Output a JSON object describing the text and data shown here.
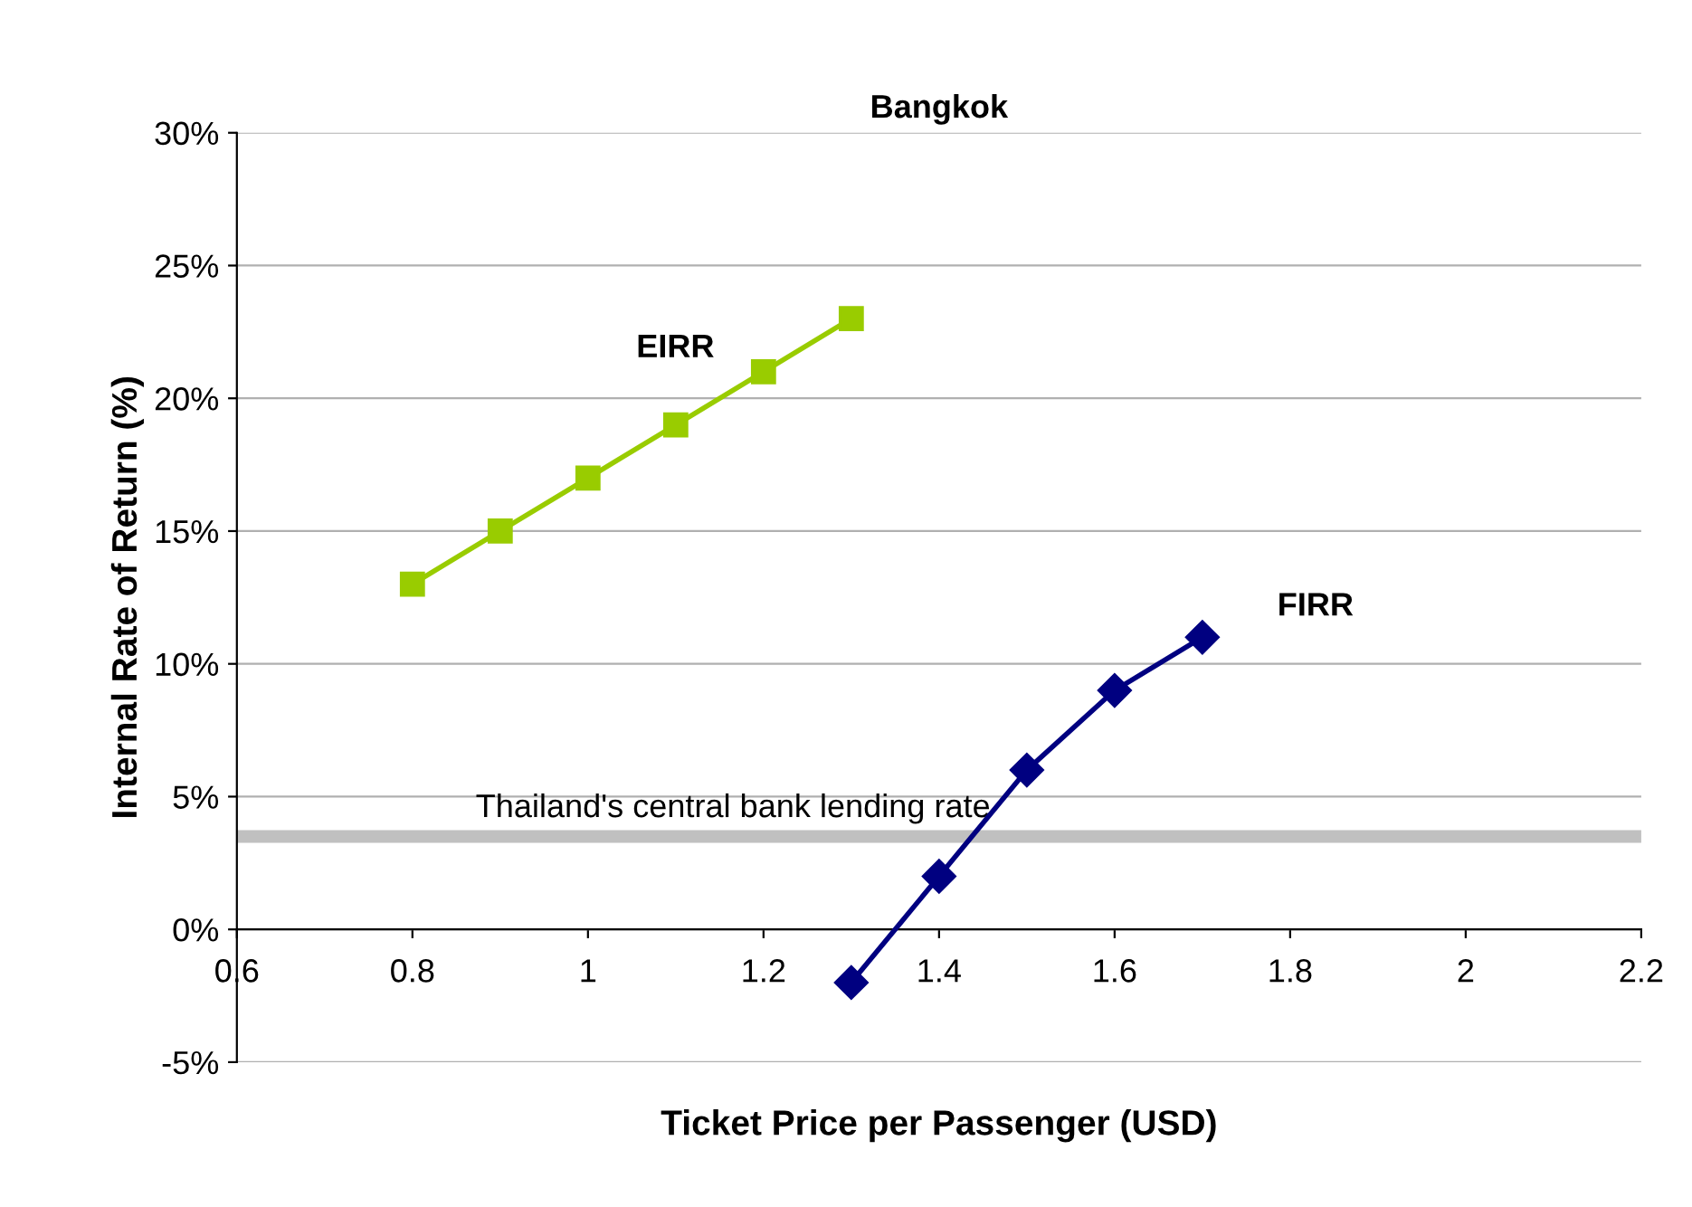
{
  "chart_data": {
    "type": "line",
    "title": "Bangkok",
    "xlabel": "Ticket Price per Passenger (USD)",
    "ylabel": "Internal Rate of Return (%)",
    "series": [
      {
        "name": "EIRR",
        "color": "#99cc00",
        "marker": "square",
        "x": [
          0.8,
          0.9,
          1.0,
          1.1,
          1.2,
          1.3
        ],
        "values": [
          13,
          15,
          17,
          19,
          21,
          23
        ]
      },
      {
        "name": "FIRR",
        "color": "#000080",
        "marker": "diamond",
        "x": [
          1.3,
          1.4,
          1.5,
          1.6,
          1.7
        ],
        "values": [
          -2,
          2,
          6,
          9,
          11
        ]
      }
    ],
    "xlim": [
      0.6,
      2.2
    ],
    "xticks": [
      0.6,
      0.8,
      1,
      1.2,
      1.4,
      1.6,
      1.8,
      2,
      2.2
    ],
    "ylim": [
      -5,
      30
    ],
    "yticks": [
      {
        "value": -5,
        "label": "-5%"
      },
      {
        "value": 0,
        "label": "0%"
      },
      {
        "value": 5,
        "label": "5%"
      },
      {
        "value": 10,
        "label": "10%"
      },
      {
        "value": 15,
        "label": "15%"
      },
      {
        "value": 20,
        "label": "20%"
      },
      {
        "value": 25,
        "label": "25%"
      },
      {
        "value": 30,
        "label": "30%"
      }
    ],
    "ref_lines": [
      {
        "axis": "y",
        "value": 3.5,
        "label": "Thailand's central bank lending rate",
        "color": "#c0c0c0"
      }
    ],
    "grid": "y",
    "legend": false
  }
}
